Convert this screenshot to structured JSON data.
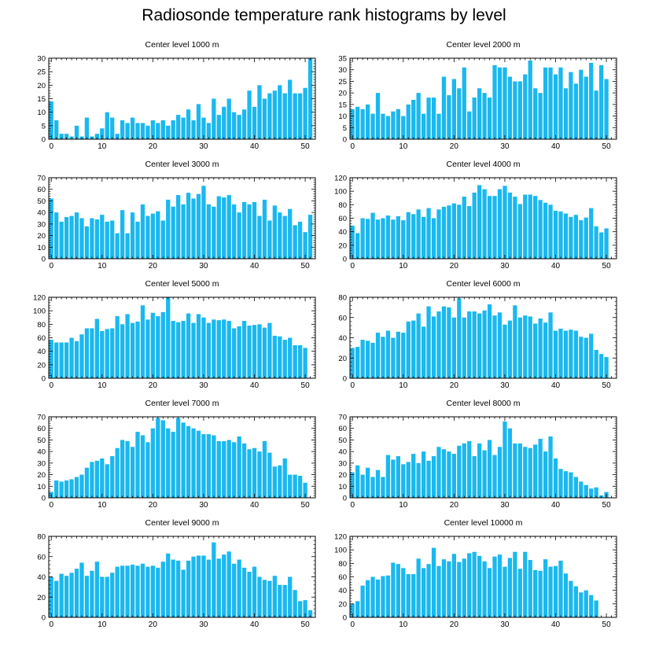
{
  "page_title": "Radiosonde temperature rank histograms by level",
  "bar_color": "#1ab8ef",
  "chart_data": [
    {
      "type": "bar",
      "title": "Center level 1000 m",
      "xlabel": "",
      "ylabel": "",
      "xlim": [
        -0.5,
        52
      ],
      "xticks": [
        0,
        10,
        20,
        30,
        40,
        50
      ],
      "ylim": [
        0,
        30
      ],
      "yticks": [
        0,
        5,
        10,
        15,
        20,
        25,
        30
      ],
      "values": [
        14,
        7,
        2,
        2,
        1,
        5,
        1,
        8,
        1,
        2,
        4,
        10,
        8,
        2,
        7,
        6,
        8,
        6,
        6,
        5,
        7,
        6,
        7,
        5,
        7,
        9,
        8,
        11,
        7,
        13,
        8,
        6,
        15,
        9,
        12,
        15,
        10,
        9,
        11,
        18,
        12,
        20,
        15,
        17,
        18,
        20,
        17,
        22,
        17,
        17,
        19,
        30
      ]
    },
    {
      "type": "bar",
      "title": "Center level 2000 m",
      "xlabel": "",
      "ylabel": "",
      "xlim": [
        -0.5,
        52
      ],
      "xticks": [
        0,
        10,
        20,
        30,
        40,
        50
      ],
      "ylim": [
        0,
        35
      ],
      "yticks": [
        0,
        5,
        10,
        15,
        20,
        25,
        30,
        35
      ],
      "values": [
        13,
        14,
        13,
        15,
        11,
        20,
        11,
        10,
        12,
        13,
        10,
        15,
        17,
        20,
        11,
        18,
        18,
        11,
        27,
        19,
        26,
        22,
        31,
        12,
        18,
        22,
        20,
        18,
        32,
        31,
        31,
        27,
        25,
        25,
        28,
        34,
        22,
        20,
        31,
        31,
        28,
        31,
        22,
        29,
        24,
        30,
        27,
        33,
        21,
        32,
        26
      ]
    },
    {
      "type": "bar",
      "title": "Center level 3000 m",
      "xlabel": "",
      "ylabel": "",
      "xlim": [
        -0.5,
        52
      ],
      "xticks": [
        0,
        10,
        20,
        30,
        40,
        50
      ],
      "ylim": [
        0,
        70
      ],
      "yticks": [
        0,
        10,
        20,
        30,
        40,
        50,
        60,
        70
      ],
      "values": [
        52,
        40,
        32,
        36,
        37,
        40,
        35,
        28,
        35,
        34,
        38,
        32,
        33,
        22,
        42,
        22,
        40,
        32,
        47,
        37,
        39,
        41,
        33,
        51,
        45,
        55,
        47,
        57,
        52,
        56,
        63,
        47,
        45,
        54,
        53,
        55,
        47,
        40,
        49,
        47,
        49,
        37,
        51,
        33,
        46,
        40,
        37,
        43,
        29,
        32,
        23,
        38
      ]
    },
    {
      "type": "bar",
      "title": "Center level 4000 m",
      "xlabel": "",
      "ylabel": "",
      "xlim": [
        -0.5,
        52
      ],
      "xticks": [
        0,
        10,
        20,
        30,
        40,
        50
      ],
      "ylim": [
        0,
        120
      ],
      "yticks": [
        0,
        20,
        40,
        60,
        80,
        100,
        120
      ],
      "values": [
        49,
        38,
        60,
        59,
        68,
        58,
        60,
        64,
        58,
        63,
        57,
        69,
        66,
        73,
        62,
        75,
        60,
        73,
        77,
        79,
        82,
        80,
        92,
        78,
        98,
        109,
        103,
        93,
        93,
        103,
        108,
        98,
        92,
        81,
        95,
        95,
        93,
        87,
        83,
        80,
        71,
        70,
        67,
        62,
        65,
        57,
        61,
        75,
        48,
        39,
        45
      ]
    },
    {
      "type": "bar",
      "title": "Center level 5000 m",
      "xlabel": "",
      "ylabel": "",
      "xlim": [
        -0.5,
        52
      ],
      "xticks": [
        0,
        10,
        20,
        30,
        40,
        50
      ],
      "ylim": [
        0,
        120
      ],
      "yticks": [
        0,
        20,
        40,
        60,
        80,
        100,
        120
      ],
      "values": [
        57,
        53,
        53,
        53,
        60,
        55,
        65,
        74,
        74,
        88,
        70,
        73,
        74,
        92,
        80,
        95,
        82,
        84,
        108,
        87,
        97,
        92,
        98,
        120,
        85,
        83,
        85,
        96,
        82,
        95,
        90,
        82,
        87,
        86,
        87,
        85,
        74,
        77,
        85,
        78,
        79,
        80,
        75,
        82,
        63,
        62,
        57,
        60,
        49,
        49,
        45
      ]
    },
    {
      "type": "bar",
      "title": "Center level 6000 m",
      "xlabel": "",
      "ylabel": "",
      "xlim": [
        -0.5,
        52
      ],
      "xticks": [
        0,
        10,
        20,
        30,
        40,
        50
      ],
      "ylim": [
        0,
        80
      ],
      "yticks": [
        0,
        20,
        40,
        60,
        80
      ],
      "values": [
        30,
        31,
        38,
        37,
        35,
        45,
        41,
        47,
        40,
        46,
        45,
        56,
        57,
        64,
        51,
        71,
        61,
        66,
        71,
        70,
        60,
        79,
        60,
        66,
        66,
        64,
        67,
        73,
        62,
        65,
        53,
        57,
        72,
        60,
        62,
        61,
        54,
        59,
        55,
        65,
        47,
        49,
        47,
        48,
        47,
        41,
        40,
        44,
        28,
        24,
        21
      ]
    },
    {
      "type": "bar",
      "title": "Center level 7000 m",
      "xlabel": "",
      "ylabel": "",
      "xlim": [
        -0.5,
        52
      ],
      "xticks": [
        0,
        10,
        20,
        30,
        40,
        50
      ],
      "ylim": [
        0,
        70
      ],
      "yticks": [
        0,
        10,
        20,
        30,
        40,
        50,
        60,
        70
      ],
      "values": [
        5,
        15,
        14,
        15,
        16,
        18,
        20,
        26,
        31,
        32,
        34,
        29,
        36,
        43,
        50,
        49,
        44,
        57,
        54,
        48,
        60,
        69,
        67,
        60,
        57,
        69,
        65,
        62,
        60,
        58,
        55,
        55,
        54,
        49,
        49,
        50,
        48,
        53,
        47,
        42,
        43,
        40,
        49,
        39,
        27,
        28,
        34,
        20,
        20,
        19,
        13
      ]
    },
    {
      "type": "bar",
      "title": "Center level 8000 m",
      "xlabel": "",
      "ylabel": "",
      "xlim": [
        -0.5,
        52
      ],
      "xticks": [
        0,
        10,
        20,
        30,
        40,
        50
      ],
      "ylim": [
        0,
        70
      ],
      "yticks": [
        0,
        10,
        20,
        30,
        40,
        50,
        60,
        70
      ],
      "values": [
        22,
        28,
        20,
        26,
        18,
        24,
        18,
        37,
        33,
        36,
        29,
        31,
        38,
        30,
        40,
        32,
        36,
        44,
        42,
        40,
        38,
        45,
        47,
        49,
        36,
        47,
        41,
        50,
        37,
        44,
        66,
        60,
        47,
        47,
        44,
        43,
        46,
        51,
        40,
        53,
        34,
        25,
        23,
        22,
        18,
        14,
        11,
        8,
        9,
        2,
        5
      ]
    },
    {
      "type": "bar",
      "title": "Center level 9000 m",
      "xlabel": "",
      "ylabel": "",
      "xlim": [
        -0.5,
        52
      ],
      "xticks": [
        0,
        10,
        20,
        30,
        40,
        50
      ],
      "ylim": [
        0,
        80
      ],
      "yticks": [
        0,
        20,
        40,
        60,
        80
      ],
      "values": [
        40,
        36,
        43,
        41,
        44,
        48,
        54,
        41,
        46,
        55,
        40,
        40,
        44,
        50,
        51,
        51,
        52,
        51,
        53,
        50,
        51,
        49,
        55,
        63,
        57,
        56,
        47,
        56,
        60,
        61,
        61,
        57,
        74,
        58,
        62,
        65,
        53,
        57,
        49,
        45,
        50,
        40,
        37,
        36,
        41,
        32,
        32,
        40,
        27,
        16,
        17,
        7
      ]
    },
    {
      "type": "bar",
      "title": "Center level 10000 m",
      "xlabel": "",
      "ylabel": "",
      "xlim": [
        -0.5,
        52
      ],
      "xticks": [
        0,
        10,
        20,
        30,
        40,
        50
      ],
      "ylim": [
        0,
        120
      ],
      "yticks": [
        0,
        20,
        40,
        60,
        80,
        100,
        120
      ],
      "values": [
        20,
        24,
        47,
        55,
        60,
        56,
        61,
        62,
        81,
        79,
        73,
        64,
        64,
        87,
        73,
        79,
        103,
        76,
        86,
        83,
        94,
        82,
        87,
        95,
        97,
        91,
        83,
        73,
        90,
        93,
        75,
        88,
        97,
        72,
        97,
        85,
        70,
        69,
        86,
        75,
        76,
        84,
        65,
        54,
        46,
        37,
        40,
        33,
        25
      ]
    }
  ]
}
